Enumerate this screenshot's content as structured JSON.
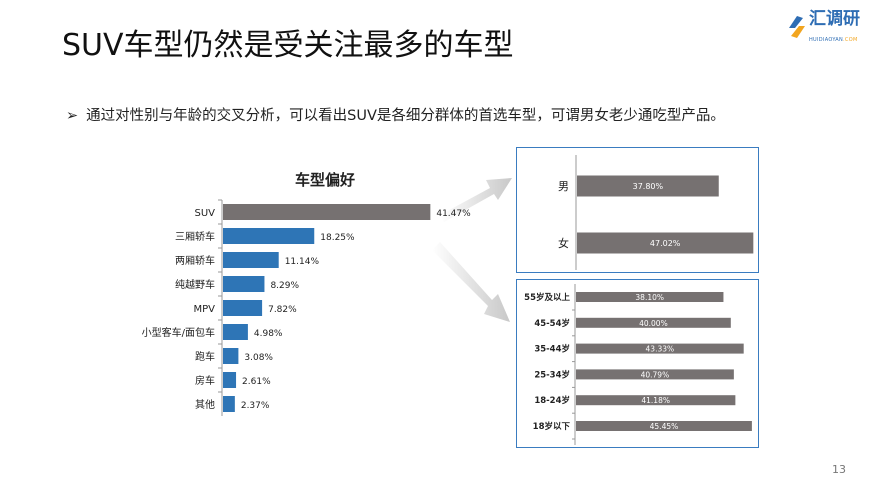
{
  "title": "SUV车型仍然是受关注最多的车型",
  "bullet": {
    "marker": "➢",
    "text": "通过对性别与年龄的交叉分析，可以看出SUV是各细分群体的首选车型，可谓男女老少通吃型产品。"
  },
  "logo": {
    "name": "汇调研",
    "sub_a": "HUIDIAOYAN",
    "sub_b": ".COM"
  },
  "page_number": "13",
  "colors": {
    "blue": "#2e75b6",
    "gray": "#767171",
    "frame": "#3a7cc0"
  },
  "chart_data": [
    {
      "type": "bar",
      "orientation": "horizontal",
      "title": "车型偏好",
      "categories": [
        "SUV",
        "三厢轿车",
        "两厢轿车",
        "纯越野车",
        "MPV",
        "小型客车/面包车",
        "跑车",
        "房车",
        "其他"
      ],
      "values": [
        41.47,
        18.25,
        11.14,
        8.29,
        7.82,
        4.98,
        3.08,
        2.61,
        2.37
      ],
      "labels": [
        "41.47%",
        "18.25%",
        "11.14%",
        "8.29%",
        "7.82%",
        "4.98%",
        "3.08%",
        "2.61%",
        "2.37%"
      ],
      "highlight": "SUV"
    },
    {
      "type": "bar",
      "orientation": "horizontal",
      "categories": [
        "男",
        "女"
      ],
      "values": [
        37.8,
        47.02
      ],
      "labels": [
        "37.80%",
        "47.02%"
      ]
    },
    {
      "type": "bar",
      "orientation": "horizontal",
      "categories": [
        "55岁及以上",
        "45-54岁",
        "35-44岁",
        "25-34岁",
        "18-24岁",
        "18岁以下"
      ],
      "values": [
        38.1,
        40.0,
        43.33,
        40.79,
        41.18,
        45.45
      ],
      "labels": [
        "38.10%",
        "40.00%",
        "43.33%",
        "40.79%",
        "41.18%",
        "45.45%"
      ]
    }
  ]
}
